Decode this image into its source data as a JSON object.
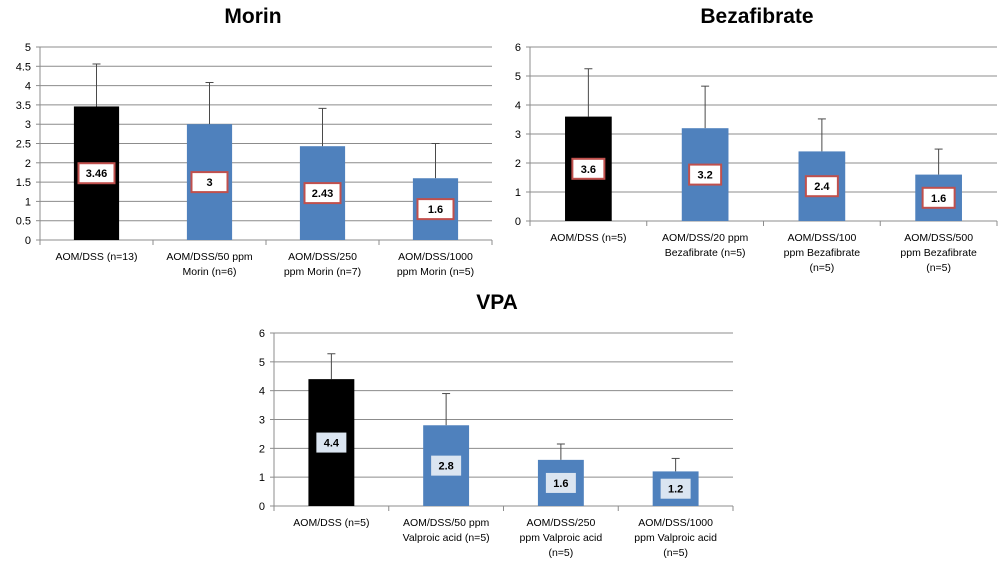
{
  "chart_data": [
    {
      "type": "bar",
      "title": "Morin",
      "categories": [
        "AOM/DSS (n=13)",
        "AOM/DSS/50 ppm Morin (n=6)",
        "AOM/DSS/250 ppm Morin (n=7)",
        "AOM/DSS/1000 ppm Morin (n=5)"
      ],
      "category_lines": [
        [
          "AOM/DSS (n=13)"
        ],
        [
          "AOM/DSS/50 ppm",
          "Morin (n=6)"
        ],
        [
          "AOM/DSS/250",
          "ppm Morin (n=7)"
        ],
        [
          "AOM/DSS/1000",
          "ppm Morin (n=5)"
        ]
      ],
      "values": [
        3.46,
        3.0,
        2.43,
        1.6
      ],
      "error_upper": [
        1.1,
        1.08,
        0.98,
        0.9
      ],
      "data_labels": [
        "3.46",
        "3",
        "2.43",
        "1.6"
      ],
      "bar_colors": [
        "#000000",
        "#4f81bd",
        "#4f81bd",
        "#4f81bd"
      ],
      "label_style": "red-border",
      "ylim": [
        0,
        5
      ],
      "yticks": [
        0,
        0.5,
        1,
        1.5,
        2,
        2.5,
        3,
        3.5,
        4,
        4.5,
        5
      ],
      "ytick_labels": [
        "0",
        "0.5",
        "1",
        "1.5",
        "2",
        "2.5",
        "3",
        "3.5",
        "4",
        "4.5",
        "5"
      ],
      "xlabel": "",
      "ylabel": "",
      "grid": true
    },
    {
      "type": "bar",
      "title": "Bezafibrate",
      "categories": [
        "AOM/DSS (n=5)",
        "AOM/DSS/20 ppm Bezafibrate (n=5)",
        "AOM/DSS/100 ppm Bezafibrate (n=5)",
        "AOM/DSS/500 ppm Bezafibrate (n=5)"
      ],
      "category_lines": [
        [
          "AOM/DSS (n=5)"
        ],
        [
          "AOM/DSS/20 ppm",
          "Bezafibrate (n=5)"
        ],
        [
          "AOM/DSS/100",
          "ppm Bezafibrate",
          "(n=5)"
        ],
        [
          "AOM/DSS/500",
          "ppm Bezafibrate",
          "(n=5)"
        ]
      ],
      "values": [
        3.6,
        3.2,
        2.4,
        1.6
      ],
      "error_upper": [
        1.65,
        1.45,
        1.12,
        0.88
      ],
      "data_labels": [
        "3.6",
        "3.2",
        "2.4",
        "1.6"
      ],
      "bar_colors": [
        "#000000",
        "#4f81bd",
        "#4f81bd",
        "#4f81bd"
      ],
      "label_style": "red-border",
      "ylim": [
        0,
        6
      ],
      "yticks": [
        0,
        1,
        2,
        3,
        4,
        5,
        6
      ],
      "ytick_labels": [
        "0",
        "1",
        "2",
        "3",
        "4",
        "5",
        "6"
      ],
      "xlabel": "",
      "ylabel": "",
      "grid": true
    },
    {
      "type": "bar",
      "title": "VPA",
      "categories": [
        "AOM/DSS (n=5)",
        "AOM/DSS/50 ppm Valproic acid (n=5)",
        "AOM/DSS/250 ppm Valproic acid (n=5)",
        "AOM/DSS/1000 ppm Valproic acid (n=5)"
      ],
      "category_lines": [
        [
          "AOM/DSS (n=5)"
        ],
        [
          "AOM/DSS/50 ppm",
          "Valproic acid (n=5)"
        ],
        [
          "AOM/DSS/250",
          "ppm Valproic acid",
          "(n=5)"
        ],
        [
          "AOM/DSS/1000",
          "ppm Valproic acid",
          "(n=5)"
        ]
      ],
      "values": [
        4.4,
        2.8,
        1.6,
        1.2
      ],
      "error_upper": [
        0.88,
        1.1,
        0.55,
        0.45
      ],
      "data_labels": [
        "4.4",
        "2.8",
        "1.6",
        "1.2"
      ],
      "bar_colors": [
        "#000000",
        "#4f81bd",
        "#4f81bd",
        "#4f81bd"
      ],
      "label_style": "light-fill",
      "ylim": [
        0,
        6
      ],
      "yticks": [
        0,
        1,
        2,
        3,
        4,
        5,
        6
      ],
      "ytick_labels": [
        "0",
        "1",
        "2",
        "3",
        "4",
        "5",
        "6"
      ],
      "xlabel": "",
      "ylabel": "",
      "grid": true
    }
  ]
}
